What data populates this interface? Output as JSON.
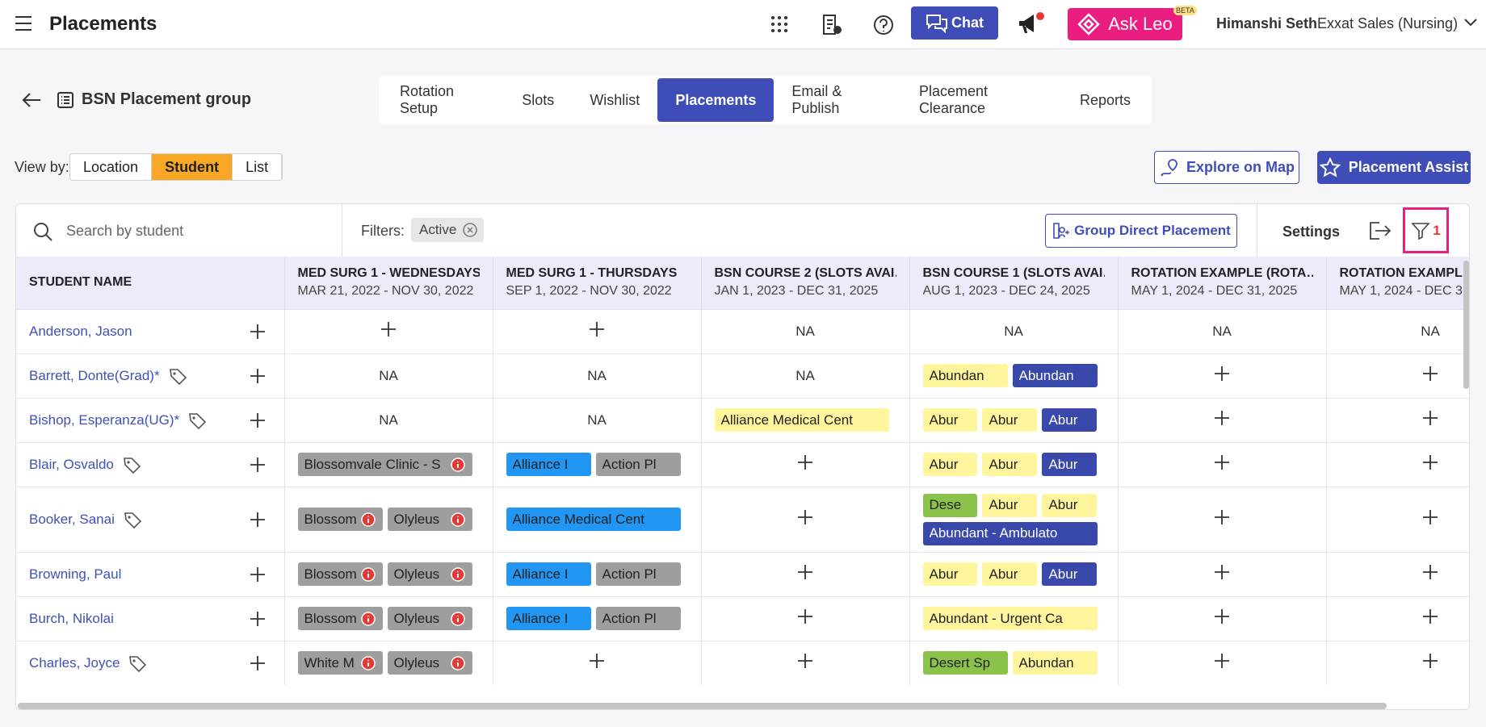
{
  "header": {
    "title": "Placements",
    "chat": "Chat",
    "ask_leo": "Ask Leo",
    "beta": "BETA",
    "user": "Himanshi Seth",
    "org": "Exxat Sales (Nursing)"
  },
  "page": {
    "group": "BSN Placement group",
    "tabs": [
      "Rotation Setup",
      "Slots",
      "Wishlist",
      "Placements",
      "Email & Publish",
      "Placement Clearance",
      "Reports"
    ],
    "active_tab": 3,
    "view_by_label": "View by:",
    "view_by": [
      "Location",
      "Student",
      "List"
    ],
    "active_view": 1,
    "explore": "Explore on Map",
    "assist": "Placement Assist"
  },
  "toolbar": {
    "search_placeholder": "Search by student",
    "filters_label": "Filters:",
    "filter_chip": "Active",
    "group_direct": "Group Direct Placement",
    "settings": "Settings",
    "filter_count": 1
  },
  "table": {
    "student_header": "STUDENT NAME",
    "columns": [
      {
        "name": "MED SURG 1 - WEDNESDAYS*",
        "dates": "MAR 21, 2022 - NOV 30, 2022"
      },
      {
        "name": "MED SURG 1 - THURSDAYS",
        "dates": "SEP 1, 2022 - NOV 30, 2022"
      },
      {
        "name": "BSN COURSE 2 (SLOTS AVAI…",
        "dates": "JAN 1, 2023 - DEC 31, 2025"
      },
      {
        "name": "BSN COURSE 1 (SLOTS AVAI…",
        "dates": "AUG 1, 2023 - DEC 24, 2025"
      },
      {
        "name": "ROTATION EXAMPLE (ROTA…",
        "dates": "MAY 1, 2024 - DEC 31, 2025"
      },
      {
        "name": "ROTATION EXAMPL",
        "dates": "MAY 1, 2024 - DEC 3"
      }
    ],
    "rows": [
      {
        "name": "Anderson, Jason",
        "tag": false,
        "cells": [
          null,
          null,
          "NA",
          "NA",
          "NA",
          "NA"
        ]
      },
      {
        "name": "Barrett, Donte(Grad)*",
        "tag": true,
        "cells": [
          "NA",
          "NA",
          "NA",
          [
            {
              "label": "Abundan",
              "color": "#fff59d",
              "info": false
            },
            {
              "label": "Abundan",
              "color": "#3949ab",
              "info": false
            }
          ],
          null,
          null
        ]
      },
      {
        "name": "Bishop, Esperanza(UG)*",
        "tag": true,
        "cells": [
          "NA",
          "NA",
          [
            {
              "label": "Alliance Medical Cent",
              "color": "#fff59d",
              "info": false
            }
          ],
          [
            {
              "label": "Abur",
              "color": "#fff59d",
              "info": false
            },
            {
              "label": "Abur",
              "color": "#fff59d",
              "info": false
            },
            {
              "label": "Abur",
              "color": "#3949ab",
              "info": false
            }
          ],
          null,
          null
        ]
      },
      {
        "name": "Blair, Osvaldo",
        "tag": true,
        "cells": [
          [
            {
              "label": "Blossomvale Clinic - S",
              "color": "#9e9e9e",
              "info": true
            }
          ],
          [
            {
              "label": "Alliance I",
              "color": "#2196f3",
              "info": false
            },
            {
              "label": "Action Pl",
              "color": "#9e9e9e",
              "info": false
            }
          ],
          null,
          [
            {
              "label": "Abur",
              "color": "#fff59d",
              "info": false
            },
            {
              "label": "Abur",
              "color": "#fff59d",
              "info": false
            },
            {
              "label": "Abur",
              "color": "#3949ab",
              "info": false
            }
          ],
          null,
          null
        ]
      },
      {
        "name": "Booker, Sanai",
        "tag": true,
        "cells": [
          [
            {
              "label": "Blossom",
              "color": "#9e9e9e",
              "info": true
            },
            {
              "label": "Olyleus",
              "color": "#9e9e9e",
              "info": true
            }
          ],
          [
            {
              "label": "Alliance Medical Cent",
              "color": "#2196f3",
              "info": false
            }
          ],
          null,
          [
            {
              "label": "Dese",
              "color": "#8bc34a",
              "info": false
            },
            {
              "label": "Abur",
              "color": "#fff59d",
              "info": false
            },
            {
              "label": "Abur",
              "color": "#fff59d",
              "info": false
            },
            {
              "label": "Abundant - Ambulato",
              "color": "#3949ab",
              "info": false
            }
          ],
          null,
          null
        ]
      },
      {
        "name": "Browning, Paul",
        "tag": false,
        "cells": [
          [
            {
              "label": "Blossom",
              "color": "#9e9e9e",
              "info": true
            },
            {
              "label": "Olyleus",
              "color": "#9e9e9e",
              "info": true
            }
          ],
          [
            {
              "label": "Alliance I",
              "color": "#2196f3",
              "info": false
            },
            {
              "label": "Action Pl",
              "color": "#9e9e9e",
              "info": false
            }
          ],
          null,
          [
            {
              "label": "Abur",
              "color": "#fff59d",
              "info": false
            },
            {
              "label": "Abur",
              "color": "#fff59d",
              "info": false
            },
            {
              "label": "Abur",
              "color": "#3949ab",
              "info": false
            }
          ],
          null,
          null
        ]
      },
      {
        "name": "Burch, Nikolai",
        "tag": false,
        "cells": [
          [
            {
              "label": "Blossom",
              "color": "#9e9e9e",
              "info": true
            },
            {
              "label": "Olyleus",
              "color": "#9e9e9e",
              "info": true
            }
          ],
          [
            {
              "label": "Alliance I",
              "color": "#2196f3",
              "info": false
            },
            {
              "label": "Action Pl",
              "color": "#9e9e9e",
              "info": false
            }
          ],
          null,
          [
            {
              "label": "Abundant - Urgent Ca",
              "color": "#fff59d",
              "info": false
            }
          ],
          null,
          null
        ]
      },
      {
        "name": "Charles, Joyce",
        "tag": true,
        "cells": [
          [
            {
              "label": "White M",
              "color": "#9e9e9e",
              "info": true
            },
            {
              "label": "Olyleus",
              "color": "#9e9e9e",
              "info": true
            }
          ],
          null,
          null,
          [
            {
              "label": "Desert Sp",
              "color": "#8bc34a",
              "info": false
            },
            {
              "label": "Abundan",
              "color": "#fff59d",
              "info": false
            }
          ],
          null,
          null
        ]
      }
    ]
  }
}
